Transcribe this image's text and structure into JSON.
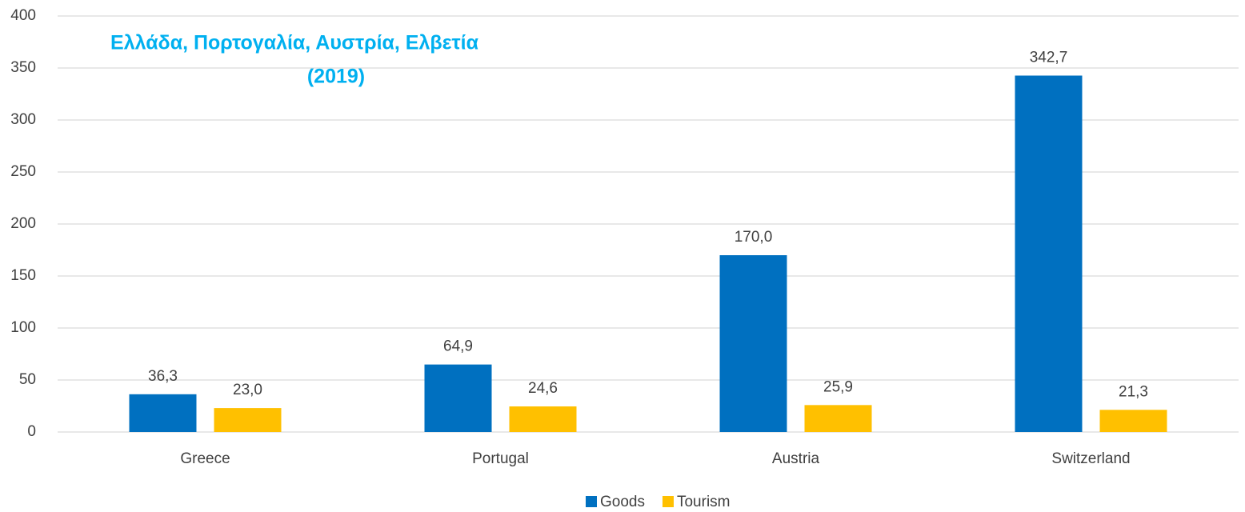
{
  "chart_data": {
    "type": "bar",
    "title": [
      "Ελλάδα, Πορτογαλία, Αυστρία, Ελβετία",
      "(2019)"
    ],
    "categories": [
      "Greece",
      "Portugal",
      "Austria",
      "Switzerland"
    ],
    "series": [
      {
        "name": "Goods",
        "color": "#0070c0",
        "values": [
          36.3,
          64.9,
          170.0,
          342.7
        ],
        "value_labels": [
          "36,3",
          "64,9",
          "170,0",
          "342,7"
        ]
      },
      {
        "name": "Tourism",
        "color": "#ffc000",
        "values": [
          23.0,
          24.6,
          25.9,
          21.3
        ],
        "value_labels": [
          "23,0",
          "24,6",
          "25,9",
          "21,3"
        ]
      }
    ],
    "ylim": [
      0,
      400
    ],
    "yticks": [
      0,
      50,
      100,
      150,
      200,
      250,
      300,
      350,
      400
    ],
    "grid": true,
    "legend": "bottom"
  }
}
